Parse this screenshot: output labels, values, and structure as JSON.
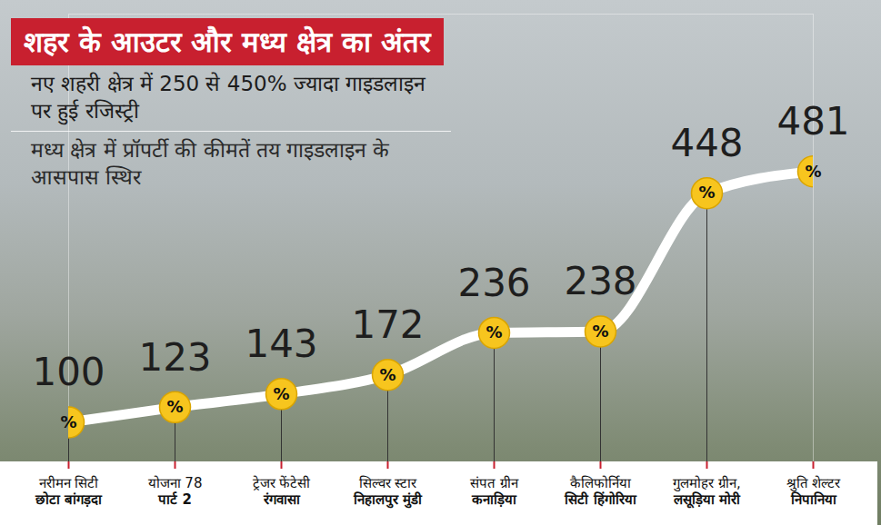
{
  "chart_data": {
    "type": "line",
    "title": "शहर के आउटर और मध्य क्षेत्र का अंतर",
    "subtitle": [
      "नए शहरी क्षेत्र में 250 से 450% ज्यादा गाइडलाइन पर हुई रजिस्ट्री",
      "मध्य क्षेत्र में प्रॉपर्टी की कीमतें तय गाइडलाइन के आसपास स्थिर"
    ],
    "categories": [
      "नरीमन सिटी\nछोटा बांगड़दा",
      "योजना 78\nपार्ट 2",
      "ट्रेजर फेंटेसी\nरंगवासा",
      "सिल्वर स्टार\nनिहालपुर मुंडी",
      "संपत ग्रीन\nकनाड़िया",
      "कैलिफोर्निया\nसिटी हिंगोरिया",
      "गुलमोहर ग्रीन,\nलसूड़िया मोरी",
      "श्रुति शेल्टर\nनिपानिया"
    ],
    "values": [
      100,
      123,
      143,
      172,
      236,
      238,
      448,
      481
    ],
    "marker_text": "%",
    "color": "#ffffff",
    "marker": "circle",
    "data_labels": true,
    "tick_labels": "x",
    "ylim": [
      40,
      720
    ],
    "yticks": []
  }
}
